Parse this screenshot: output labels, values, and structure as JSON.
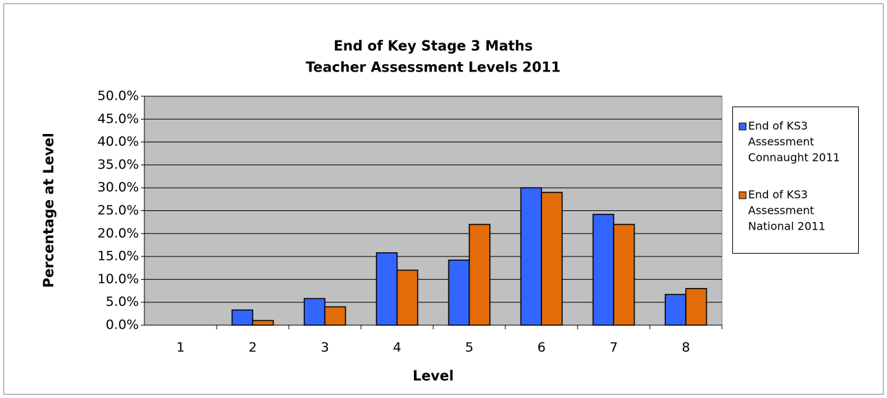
{
  "chart_data": {
    "type": "bar",
    "title": [
      "End of Key Stage 3 Maths",
      "Teacher Assessment Levels 2011"
    ],
    "xlabel": "Level",
    "ylabel": "Percentage at Level",
    "categories": [
      "1",
      "2",
      "3",
      "4",
      "5",
      "6",
      "7",
      "8"
    ],
    "series": [
      {
        "name": [
          "End of KS3",
          "Assessment",
          "Connaught 2011"
        ],
        "color": "#3366ff",
        "values": [
          0,
          3.3,
          5.8,
          15.8,
          14.2,
          30,
          24.2,
          6.7
        ]
      },
      {
        "name": [
          "End of KS3",
          "Assessment",
          "National 2011"
        ],
        "color": "#e36c09",
        "values": [
          0,
          1,
          4,
          12,
          22,
          29,
          22,
          8
        ]
      }
    ],
    "ylim": [
      0,
      50
    ],
    "yticks": [
      {
        "value": 0,
        "label": "0.0%"
      },
      {
        "value": 5,
        "label": "5.0%"
      },
      {
        "value": 10,
        "label": "10.0%"
      },
      {
        "value": 15,
        "label": "15.0%"
      },
      {
        "value": 20,
        "label": "20.0%"
      },
      {
        "value": 25,
        "label": "25.0%"
      },
      {
        "value": 30,
        "label": "30.0%"
      },
      {
        "value": 35,
        "label": "35.0%"
      },
      {
        "value": 40,
        "label": "40.0%"
      },
      {
        "value": 45,
        "label": "45.0%"
      },
      {
        "value": 50,
        "label": "50.0%"
      }
    ],
    "grid": true,
    "legend": "right"
  }
}
